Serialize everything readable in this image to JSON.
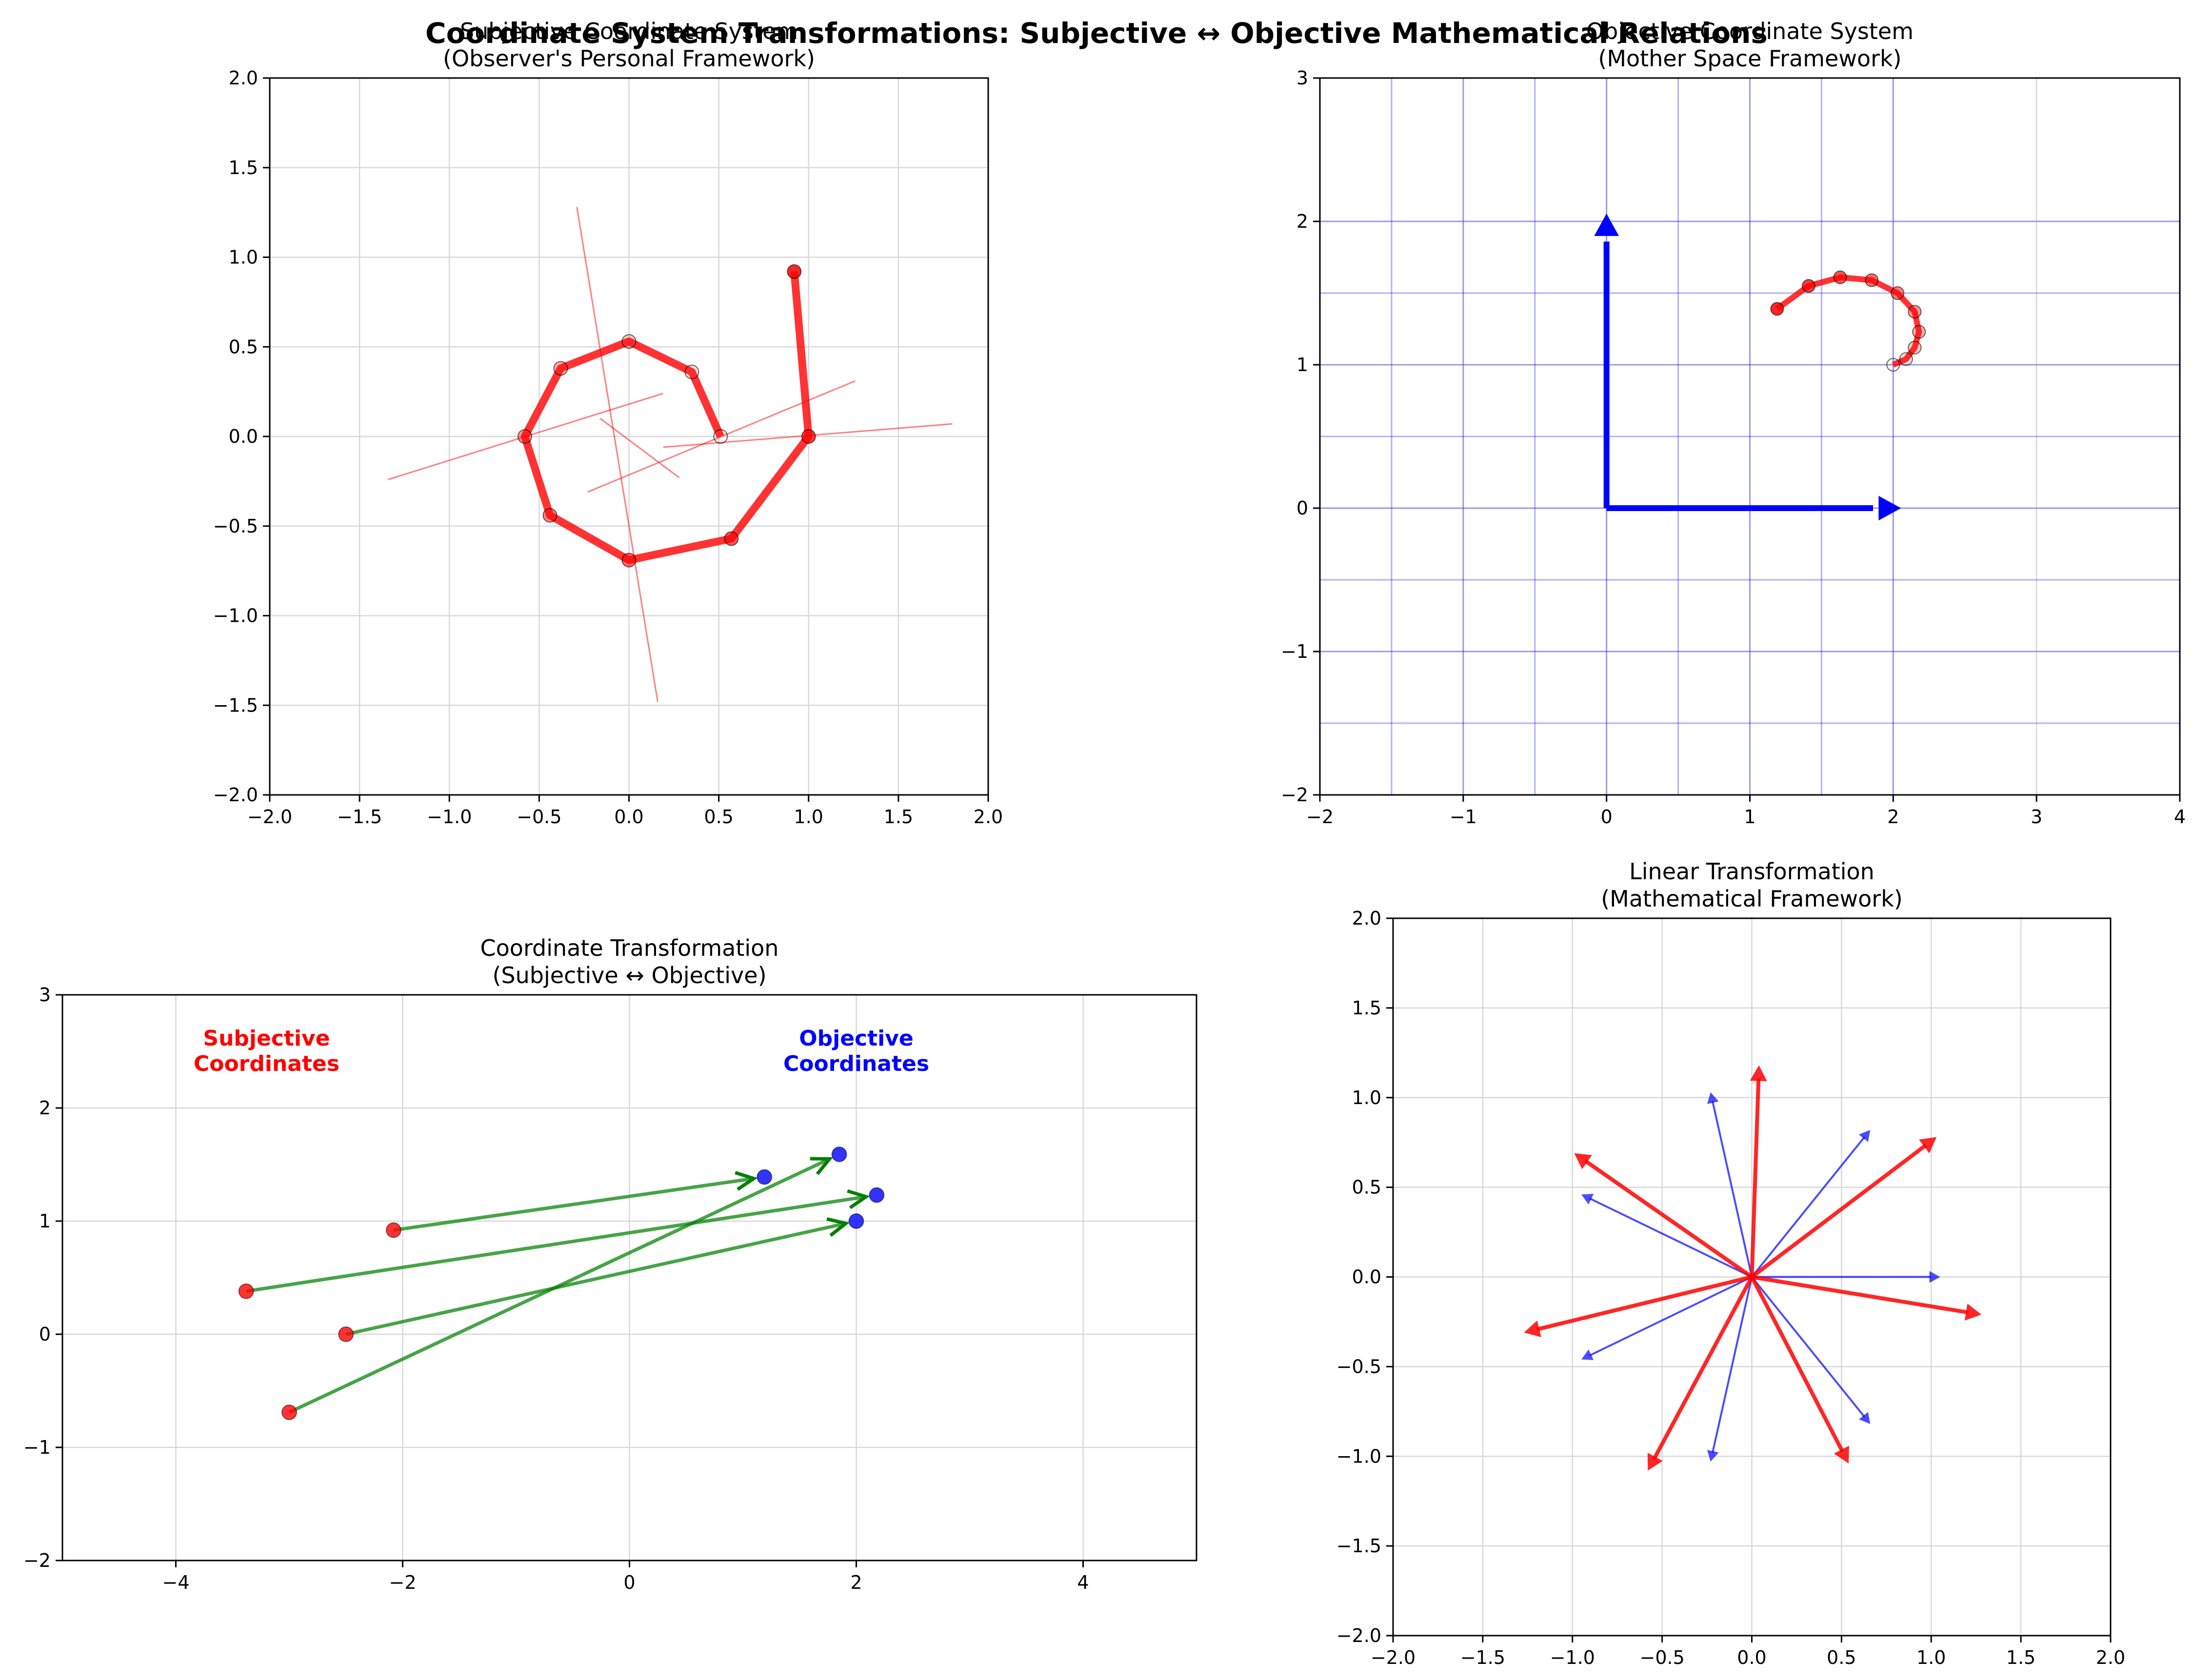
{
  "figure": {
    "suptitle": "Coordinate System Transformations: Subjective ↔ Objective Mathematical Relations"
  },
  "colors": {
    "red": "#ff0000",
    "blue": "#0000ff",
    "green": "#008000",
    "grid": "#d8d8d8",
    "text": "#000000"
  },
  "chart_data": [
    {
      "id": "subjective",
      "type": "line",
      "title": "Subjective Coordinate System\n(Observer's Personal Framework)",
      "xlabel": "",
      "ylabel": "",
      "xlim": [
        -2,
        2
      ],
      "ylim": [
        -2,
        2
      ],
      "xticks": [
        -2.0,
        -1.5,
        -1.0,
        -0.5,
        0.0,
        0.5,
        1.0,
        1.5,
        2.0
      ],
      "yticks": [
        -2.0,
        -1.5,
        -1.0,
        -0.5,
        0.0,
        0.5,
        1.0,
        1.5,
        2.0
      ],
      "tick_decimals": 1,
      "grid": true,
      "trajectory": {
        "color": "#ff0000",
        "x": [
          0.92,
          1.0,
          0.57,
          0.0,
          -0.44,
          -0.58,
          -0.38,
          0.0,
          0.35,
          0.51
        ],
        "y": [
          0.92,
          0.0,
          -0.57,
          -0.69,
          -0.44,
          0.0,
          0.38,
          0.53,
          0.36,
          0.0
        ]
      },
      "axis_lines": {
        "color": "#ff0000",
        "segments": [
          [
            [
              -0.29,
              1.28
            ],
            [
              0.16,
              -1.48
            ]
          ],
          [
            [
              -1.34,
              -0.24
            ],
            [
              0.19,
              0.24
            ]
          ],
          [
            [
              -0.23,
              -0.31
            ],
            [
              1.26,
              0.31
            ]
          ],
          [
            [
              0.19,
              -0.06
            ],
            [
              1.8,
              0.07
            ]
          ],
          [
            [
              -0.16,
              0.1
            ],
            [
              0.28,
              -0.23
            ]
          ]
        ]
      }
    },
    {
      "id": "objective",
      "type": "line",
      "title": "Objective Coordinate System\n(Mother Space Framework)",
      "xlabel": "",
      "ylabel": "",
      "xlim": [
        -2,
        4
      ],
      "ylim": [
        -2,
        3
      ],
      "xticks": [
        -2,
        -1,
        0,
        1,
        2,
        3,
        4
      ],
      "yticks": [
        -2,
        -1,
        0,
        1,
        2,
        3
      ],
      "tick_decimals": 0,
      "grid": true,
      "grid_lines": {
        "color": "#0000ff",
        "x": [
          -1.5,
          -1.0,
          -0.5,
          0.0,
          0.5,
          1.0,
          1.5,
          2.0
        ],
        "y": [
          -1.5,
          -1.0,
          -0.5,
          0.0,
          0.5,
          1.0,
          1.5,
          2.0
        ]
      },
      "basis_vectors": {
        "color": "#0000ff",
        "vectors": [
          [
            2,
            0
          ],
          [
            0,
            2
          ]
        ]
      },
      "trajectory": {
        "color": "#ff0000",
        "x": [
          1.19,
          1.41,
          1.63,
          1.85,
          2.03,
          2.15,
          2.18,
          2.15,
          2.09,
          2.0
        ],
        "y": [
          1.39,
          1.55,
          1.61,
          1.59,
          1.5,
          1.37,
          1.23,
          1.12,
          1.04,
          1.0
        ]
      }
    },
    {
      "id": "transformation",
      "type": "scatter",
      "title": "Coordinate Transformation\n(Subjective ↔ Objective)",
      "xlabel": "",
      "ylabel": "",
      "xlim": [
        -5,
        5
      ],
      "ylim": [
        -2,
        3
      ],
      "xticks": [
        -4,
        -2,
        0,
        2,
        4
      ],
      "yticks": [
        -2,
        -1,
        0,
        1,
        2,
        3
      ],
      "tick_decimals": 0,
      "grid": true,
      "annotations": [
        {
          "text": "Subjective\nCoordinates",
          "x": -3.2,
          "y": 2.5,
          "color": "#ff0000"
        },
        {
          "text": "Objective\nCoordinates",
          "x": 2.0,
          "y": 2.5,
          "color": "#0000ff"
        }
      ],
      "subjective_points": {
        "color": "#ff0000",
        "x": [
          -2.08,
          -3.38,
          -2.5,
          -3.0
        ],
        "y": [
          0.92,
          0.38,
          0.0,
          -0.69
        ]
      },
      "objective_points": {
        "color": "#0000ff",
        "x": [
          1.19,
          2.18,
          2.0,
          1.85
        ],
        "y": [
          1.39,
          1.23,
          1.0,
          1.59
        ]
      },
      "arrows": {
        "color": "#008000",
        "pairs": [
          [
            0,
            0
          ],
          [
            1,
            1
          ],
          [
            2,
            2
          ],
          [
            3,
            3
          ]
        ]
      }
    },
    {
      "id": "linear",
      "type": "vector",
      "title": "Linear Transformation\n(Mathematical Framework)",
      "xlabel": "",
      "ylabel": "",
      "xlim": [
        -2,
        2
      ],
      "ylim": [
        -2,
        2
      ],
      "xticks": [
        -2.0,
        -1.5,
        -1.0,
        -0.5,
        0.0,
        0.5,
        1.0,
        1.5,
        2.0
      ],
      "yticks": [
        -2.0,
        -1.5,
        -1.0,
        -0.5,
        0.0,
        0.5,
        1.0,
        1.5,
        2.0
      ],
      "tick_decimals": 1,
      "grid": true,
      "original_vectors": {
        "color": "#0000ff",
        "vectors": [
          [
            1.05,
            0.0
          ],
          [
            0.66,
            0.82
          ],
          [
            -0.23,
            1.03
          ],
          [
            -0.95,
            0.46
          ],
          [
            -0.95,
            -0.46
          ],
          [
            -0.23,
            -1.03
          ],
          [
            0.66,
            -0.82
          ]
        ]
      },
      "transformed_vectors": {
        "color": "#ff0000",
        "vectors": [
          [
            1.28,
            -0.21
          ],
          [
            1.03,
            0.78
          ],
          [
            0.04,
            1.18
          ],
          [
            -0.99,
            0.69
          ],
          [
            -1.27,
            -0.31
          ],
          [
            -0.58,
            -1.08
          ],
          [
            0.54,
            -1.04
          ]
        ]
      }
    }
  ]
}
